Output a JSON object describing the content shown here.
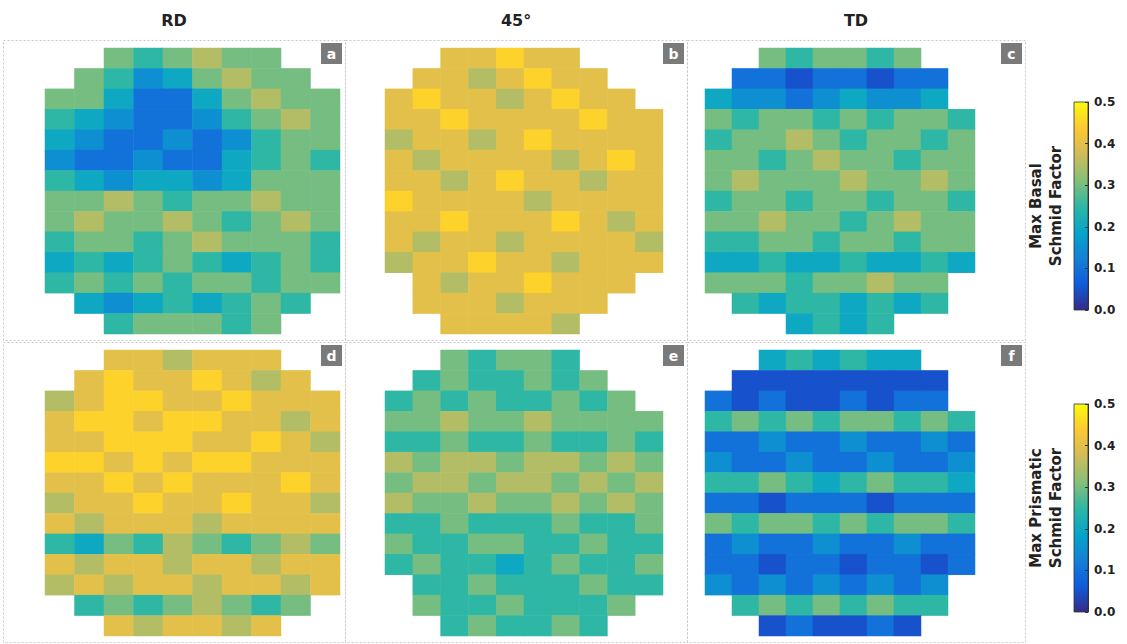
{
  "columns": [
    "RD",
    "45°",
    "TD"
  ],
  "colorbars": [
    {
      "title": "Max Basal Schmid Factor",
      "range": [
        0,
        0.5
      ],
      "ticks": [
        {
          "value": 0,
          "label": "0.0"
        },
        {
          "value": 0.1,
          "label": "0.1"
        },
        {
          "value": 0.2,
          "label": "0.2"
        },
        {
          "value": 0.3,
          "label": "0.3"
        },
        {
          "value": 0.4,
          "label": "0.4"
        },
        {
          "value": 0.5,
          "label": "0.5"
        }
      ]
    },
    {
      "title": "Max Prismatic Schmid Factor",
      "range": [
        0,
        0.5
      ],
      "ticks": [
        {
          "value": 0,
          "label": "0.0"
        },
        {
          "value": 0.1,
          "label": "0.1"
        },
        {
          "value": 0.2,
          "label": "0.2"
        },
        {
          "value": 0.3,
          "label": "0.3"
        },
        {
          "value": 0.4,
          "label": "0.4"
        },
        {
          "value": 0.5,
          "label": "0.5"
        }
      ]
    }
  ],
  "chart_data": [
    {
      "type": "heatmap",
      "letter": "a",
      "tick_labels": false,
      "cells": [
        [
          null,
          null,
          0.3,
          0.25,
          0.3,
          0.35,
          0.3,
          0.3,
          null,
          null
        ],
        [
          null,
          0.3,
          0.25,
          0.15,
          0.2,
          0.3,
          0.35,
          0.3,
          0.3,
          null
        ],
        [
          0.3,
          0.3,
          0.2,
          0.1,
          0.1,
          0.2,
          0.3,
          0.35,
          0.3,
          0.3
        ],
        [
          0.25,
          0.2,
          0.15,
          0.1,
          0.1,
          0.15,
          0.25,
          0.3,
          0.35,
          0.3
        ],
        [
          0.2,
          0.15,
          0.1,
          0.1,
          0.15,
          0.1,
          0.15,
          0.25,
          0.3,
          0.3
        ],
        [
          0.15,
          0.1,
          0.1,
          0.15,
          0.1,
          0.1,
          0.2,
          0.25,
          0.3,
          0.25
        ],
        [
          0.25,
          0.2,
          0.15,
          0.2,
          0.2,
          0.15,
          0.2,
          0.3,
          0.3,
          0.3
        ],
        [
          0.3,
          0.3,
          0.35,
          0.3,
          0.25,
          0.3,
          0.3,
          0.35,
          0.3,
          0.3
        ],
        [
          0.3,
          0.35,
          0.3,
          0.3,
          0.35,
          0.3,
          0.25,
          0.3,
          0.35,
          0.3
        ],
        [
          0.25,
          0.3,
          0.3,
          0.25,
          0.3,
          0.35,
          0.3,
          0.3,
          0.3,
          0.25
        ],
        [
          0.2,
          0.25,
          0.2,
          0.25,
          0.3,
          0.25,
          0.2,
          0.25,
          0.3,
          0.25
        ],
        [
          0.25,
          0.3,
          0.25,
          0.3,
          0.25,
          0.3,
          0.3,
          0.25,
          0.3,
          0.3
        ],
        [
          null,
          0.2,
          0.15,
          0.2,
          0.25,
          0.2,
          0.25,
          0.3,
          0.25,
          null
        ],
        [
          null,
          null,
          0.25,
          0.3,
          0.3,
          0.3,
          0.25,
          0.3,
          null,
          null
        ]
      ]
    },
    {
      "type": "heatmap",
      "letter": "b",
      "tick_labels": false,
      "cells": [
        [
          null,
          null,
          0.4,
          0.4,
          0.45,
          0.4,
          0.4,
          null,
          null,
          null
        ],
        [
          null,
          0.4,
          0.4,
          0.35,
          0.4,
          0.45,
          0.4,
          0.4,
          null,
          null
        ],
        [
          0.4,
          0.45,
          0.4,
          0.4,
          0.35,
          0.4,
          0.45,
          0.4,
          0.4,
          null
        ],
        [
          0.4,
          0.4,
          0.45,
          0.4,
          0.4,
          0.4,
          0.4,
          0.45,
          0.4,
          0.4
        ],
        [
          0.35,
          0.4,
          0.4,
          0.35,
          0.4,
          0.45,
          0.4,
          0.4,
          0.4,
          0.4
        ],
        [
          0.4,
          0.35,
          0.4,
          0.4,
          0.4,
          0.4,
          0.35,
          0.4,
          0.45,
          0.4
        ],
        [
          0.4,
          0.4,
          0.35,
          0.4,
          0.45,
          0.4,
          0.4,
          0.35,
          0.4,
          0.4
        ],
        [
          0.45,
          0.4,
          0.4,
          0.4,
          0.4,
          0.35,
          0.4,
          0.4,
          0.4,
          0.4
        ],
        [
          0.4,
          0.4,
          0.45,
          0.4,
          0.4,
          0.4,
          0.45,
          0.4,
          0.35,
          0.4
        ],
        [
          0.4,
          0.35,
          0.4,
          0.4,
          0.35,
          0.4,
          0.4,
          0.4,
          0.4,
          0.35
        ],
        [
          0.35,
          0.4,
          0.4,
          0.45,
          0.4,
          0.4,
          0.35,
          0.4,
          0.4,
          0.4
        ],
        [
          null,
          0.4,
          0.35,
          0.4,
          0.4,
          0.45,
          0.4,
          0.4,
          0.4,
          null
        ],
        [
          null,
          0.4,
          0.4,
          0.4,
          0.35,
          0.4,
          0.4,
          0.4,
          null,
          null
        ],
        [
          null,
          null,
          0.4,
          0.4,
          0.4,
          0.4,
          0.35,
          null,
          null,
          null
        ]
      ]
    },
    {
      "type": "heatmap",
      "letter": "c",
      "tick_labels": false,
      "cells": [
        [
          null,
          null,
          0.3,
          0.25,
          0.3,
          0.3,
          0.25,
          0.3,
          null,
          null
        ],
        [
          null,
          0.1,
          0.1,
          0.05,
          0.1,
          0.1,
          0.05,
          0.1,
          0.1,
          null
        ],
        [
          0.2,
          0.15,
          0.15,
          0.1,
          0.15,
          0.2,
          0.15,
          0.15,
          0.2,
          null
        ],
        [
          0.3,
          0.25,
          0.3,
          0.3,
          0.25,
          0.3,
          0.25,
          0.3,
          0.3,
          0.25
        ],
        [
          0.25,
          0.3,
          0.3,
          0.35,
          0.3,
          0.25,
          0.3,
          0.3,
          0.25,
          0.3
        ],
        [
          0.3,
          0.3,
          0.25,
          0.3,
          0.35,
          0.3,
          0.3,
          0.25,
          0.3,
          0.3
        ],
        [
          0.3,
          0.35,
          0.3,
          0.3,
          0.3,
          0.35,
          0.3,
          0.3,
          0.35,
          0.3
        ],
        [
          0.25,
          0.3,
          0.3,
          0.25,
          0.3,
          0.3,
          0.25,
          0.3,
          0.3,
          0.25
        ],
        [
          0.3,
          0.3,
          0.35,
          0.3,
          0.3,
          0.25,
          0.3,
          0.35,
          0.3,
          0.3
        ],
        [
          0.25,
          0.25,
          0.3,
          0.3,
          0.25,
          0.3,
          0.3,
          0.25,
          0.3,
          0.3
        ],
        [
          0.2,
          0.2,
          0.25,
          0.2,
          0.2,
          0.25,
          0.2,
          0.2,
          0.25,
          0.2
        ],
        [
          0.3,
          0.3,
          0.3,
          0.25,
          0.3,
          0.3,
          0.35,
          0.3,
          0.3,
          null
        ],
        [
          null,
          0.25,
          0.2,
          0.25,
          0.25,
          0.2,
          0.25,
          0.2,
          0.25,
          null
        ],
        [
          null,
          null,
          null,
          0.2,
          0.25,
          0.2,
          0.25,
          null,
          null,
          null
        ]
      ]
    },
    {
      "type": "heatmap",
      "letter": "d",
      "tick_labels": false,
      "cells": [
        [
          null,
          null,
          0.4,
          0.4,
          0.35,
          0.4,
          0.4,
          0.4,
          null,
          null
        ],
        [
          null,
          0.4,
          0.45,
          0.4,
          0.4,
          0.45,
          0.4,
          0.35,
          0.4,
          null
        ],
        [
          0.35,
          0.4,
          0.45,
          0.45,
          0.4,
          0.4,
          0.45,
          0.4,
          0.4,
          0.4
        ],
        [
          0.4,
          0.45,
          0.45,
          0.4,
          0.45,
          0.45,
          0.4,
          0.4,
          0.35,
          0.4
        ],
        [
          0.4,
          0.4,
          0.45,
          0.45,
          0.45,
          0.4,
          0.4,
          0.45,
          0.4,
          0.35
        ],
        [
          0.45,
          0.45,
          0.4,
          0.45,
          0.4,
          0.45,
          0.45,
          0.4,
          0.4,
          0.4
        ],
        [
          0.4,
          0.4,
          0.45,
          0.4,
          0.45,
          0.4,
          0.4,
          0.4,
          0.45,
          0.4
        ],
        [
          0.35,
          0.4,
          0.4,
          0.45,
          0.4,
          0.4,
          0.45,
          0.4,
          0.4,
          0.35
        ],
        [
          0.4,
          0.35,
          0.4,
          0.4,
          0.4,
          0.35,
          0.4,
          0.4,
          0.4,
          0.4
        ],
        [
          0.25,
          0.2,
          0.3,
          0.25,
          0.35,
          0.3,
          0.25,
          0.3,
          0.35,
          0.3
        ],
        [
          0.4,
          0.35,
          0.4,
          0.4,
          0.35,
          0.4,
          0.4,
          0.35,
          0.4,
          0.4
        ],
        [
          0.35,
          0.4,
          0.35,
          0.4,
          0.4,
          0.35,
          0.4,
          0.4,
          0.35,
          0.4
        ],
        [
          null,
          0.25,
          0.3,
          0.25,
          0.3,
          0.35,
          0.3,
          0.25,
          0.3,
          null
        ],
        [
          null,
          null,
          0.4,
          0.35,
          0.4,
          0.4,
          0.35,
          0.4,
          null,
          null
        ]
      ]
    },
    {
      "type": "heatmap",
      "letter": "e",
      "tick_labels": false,
      "cells": [
        [
          null,
          null,
          0.3,
          0.25,
          0.3,
          0.3,
          0.25,
          null,
          null,
          null
        ],
        [
          null,
          0.25,
          0.3,
          0.25,
          0.25,
          0.3,
          0.25,
          0.3,
          null,
          null
        ],
        [
          0.25,
          0.3,
          0.25,
          0.3,
          0.25,
          0.25,
          0.3,
          0.25,
          0.3,
          null
        ],
        [
          0.3,
          0.3,
          0.35,
          0.3,
          0.3,
          0.35,
          0.3,
          0.3,
          0.3,
          0.3
        ],
        [
          0.25,
          0.25,
          0.3,
          0.25,
          0.25,
          0.3,
          0.25,
          0.25,
          0.3,
          0.25
        ],
        [
          0.35,
          0.3,
          0.35,
          0.35,
          0.3,
          0.35,
          0.35,
          0.3,
          0.35,
          0.3
        ],
        [
          0.3,
          0.35,
          0.35,
          0.3,
          0.35,
          0.35,
          0.3,
          0.35,
          0.3,
          0.35
        ],
        [
          0.35,
          0.3,
          0.3,
          0.35,
          0.3,
          0.3,
          0.35,
          0.3,
          0.35,
          0.3
        ],
        [
          0.25,
          0.25,
          0.3,
          0.25,
          0.25,
          0.25,
          0.3,
          0.25,
          0.25,
          0.3
        ],
        [
          0.3,
          0.25,
          0.25,
          0.3,
          0.3,
          0.25,
          0.25,
          0.3,
          0.25,
          0.25
        ],
        [
          0.25,
          0.3,
          0.25,
          0.25,
          0.2,
          0.25,
          0.3,
          0.25,
          0.25,
          0.3
        ],
        [
          null,
          0.25,
          0.25,
          0.3,
          0.25,
          0.25,
          0.25,
          0.3,
          0.25,
          0.25
        ],
        [
          null,
          0.3,
          0.25,
          0.25,
          0.3,
          0.25,
          0.25,
          0.25,
          0.3,
          null
        ],
        [
          null,
          null,
          0.25,
          0.3,
          0.25,
          0.25,
          0.3,
          0.25,
          null,
          null
        ]
      ]
    },
    {
      "type": "heatmap",
      "letter": "f",
      "tick_labels": false,
      "cells": [
        [
          null,
          null,
          0.2,
          0.25,
          0.2,
          0.25,
          0.2,
          0.2,
          null,
          null
        ],
        [
          null,
          0.05,
          0.05,
          0.05,
          0.05,
          0.05,
          0.05,
          0.05,
          0.05,
          null
        ],
        [
          0.1,
          0.05,
          0.1,
          0.05,
          0.05,
          0.1,
          0.05,
          0.1,
          0.1,
          null
        ],
        [
          0.25,
          0.3,
          0.25,
          0.3,
          0.25,
          0.3,
          0.3,
          0.25,
          0.3,
          0.25
        ],
        [
          0.1,
          0.1,
          0.15,
          0.1,
          0.1,
          0.15,
          0.1,
          0.1,
          0.15,
          0.1
        ],
        [
          0.15,
          0.1,
          0.1,
          0.15,
          0.1,
          0.1,
          0.15,
          0.1,
          0.1,
          0.15
        ],
        [
          0.25,
          0.25,
          0.3,
          0.25,
          0.2,
          0.25,
          0.3,
          0.25,
          0.25,
          0.2
        ],
        [
          0.1,
          0.1,
          0.05,
          0.1,
          0.1,
          0.1,
          0.05,
          0.1,
          0.1,
          0.1
        ],
        [
          0.3,
          0.25,
          0.3,
          0.3,
          0.25,
          0.3,
          0.25,
          0.3,
          0.3,
          0.25
        ],
        [
          0.1,
          0.15,
          0.1,
          0.1,
          0.15,
          0.1,
          0.1,
          0.15,
          0.1,
          0.1
        ],
        [
          0.1,
          0.1,
          0.05,
          0.1,
          0.1,
          0.05,
          0.1,
          0.1,
          0.05,
          0.1
        ],
        [
          0.15,
          0.1,
          0.15,
          0.1,
          0.15,
          0.1,
          0.15,
          0.1,
          0.15,
          null
        ],
        [
          null,
          0.25,
          0.3,
          0.25,
          0.3,
          0.25,
          0.3,
          0.25,
          0.25,
          null
        ],
        [
          null,
          null,
          0.05,
          0.1,
          0.05,
          0.05,
          0.1,
          0.05,
          null,
          null
        ]
      ]
    }
  ]
}
